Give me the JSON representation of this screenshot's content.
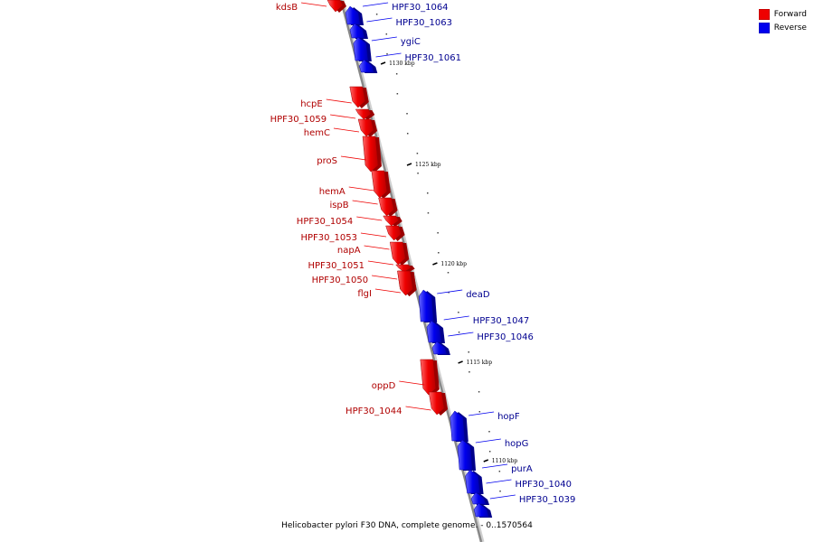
{
  "title": "Helicobacter pylori F30 DNA, complete genome. - 0..1570564",
  "legend": [
    {
      "label": "Forward",
      "color": "#ee0000"
    },
    {
      "label": "Reverse",
      "color": "#0000ee"
    }
  ],
  "colors": {
    "forward": "#ee0000",
    "reverse": "#0000ee",
    "forward_text": "#b00000",
    "reverse_text": "#000090",
    "backbone": "#888888"
  },
  "tick_labels": [
    "1130 kbp",
    "1125 kbp",
    "1120 kbp",
    "1115 kbp",
    "1110 kbp"
  ],
  "genes": [
    {
      "name": "kdsB",
      "strand": "forward"
    },
    {
      "name": "HPF30_1064",
      "strand": "reverse"
    },
    {
      "name": "HPF30_1063",
      "strand": "reverse"
    },
    {
      "name": "ygiC",
      "strand": "reverse"
    },
    {
      "name": "HPF30_1061",
      "strand": "reverse"
    },
    {
      "name": "hcpE",
      "strand": "forward"
    },
    {
      "name": "HPF30_1059",
      "strand": "forward"
    },
    {
      "name": "hemC",
      "strand": "forward"
    },
    {
      "name": "proS",
      "strand": "forward"
    },
    {
      "name": "hemA",
      "strand": "forward"
    },
    {
      "name": "ispB",
      "strand": "forward"
    },
    {
      "name": "HPF30_1054",
      "strand": "forward"
    },
    {
      "name": "HPF30_1053",
      "strand": "forward"
    },
    {
      "name": "napA",
      "strand": "forward"
    },
    {
      "name": "HPF30_1051",
      "strand": "forward"
    },
    {
      "name": "HPF30_1050",
      "strand": "forward"
    },
    {
      "name": "flgI",
      "strand": "forward"
    },
    {
      "name": "deaD",
      "strand": "reverse"
    },
    {
      "name": "HPF30_1047",
      "strand": "reverse"
    },
    {
      "name": "HPF30_1046",
      "strand": "reverse"
    },
    {
      "name": "oppD",
      "strand": "forward"
    },
    {
      "name": "HPF30_1044",
      "strand": "forward"
    },
    {
      "name": "hopF",
      "strand": "reverse"
    },
    {
      "name": "hopG",
      "strand": "reverse"
    },
    {
      "name": "purA",
      "strand": "reverse"
    },
    {
      "name": "HPF30_1040",
      "strand": "reverse"
    },
    {
      "name": "HPF30_1039",
      "strand": "reverse"
    }
  ]
}
